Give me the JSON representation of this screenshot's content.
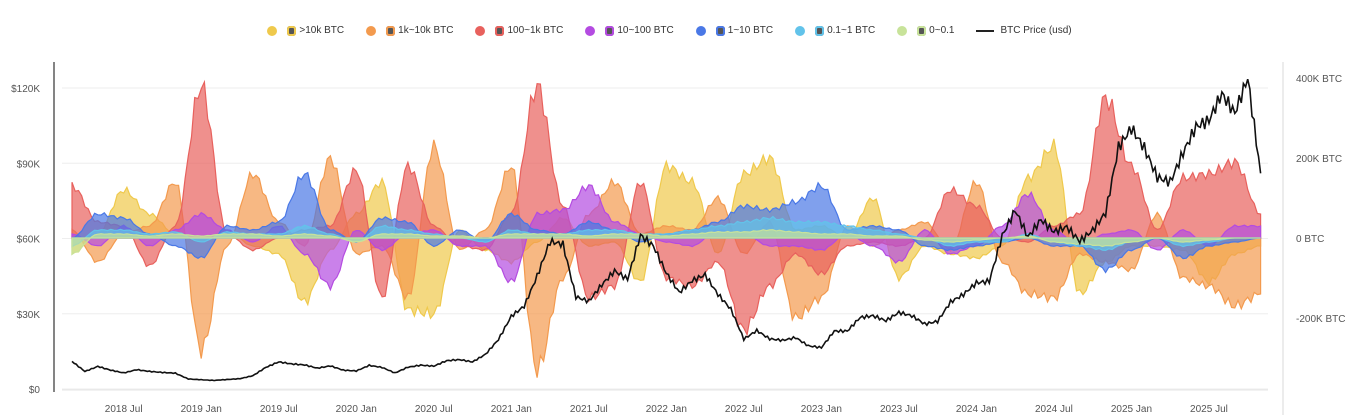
{
  "legend": [
    {
      "label": ">10k BTC",
      "color": "#efc94c",
      "icon": "whale-icon"
    },
    {
      "label": "1k~10k BTC",
      "color": "#f39a4e",
      "icon": "shark-icon"
    },
    {
      "label": "100~1k BTC",
      "color": "#e8615d",
      "icon": "dolphin-icon"
    },
    {
      "label": "10~100 BTC",
      "color": "#b44be1",
      "icon": "fish-icon"
    },
    {
      "label": "1~10 BTC",
      "color": "#4a78e6",
      "icon": "crab-icon"
    },
    {
      "label": "0.1~1 BTC",
      "color": "#62c3ea",
      "icon": "octopus-icon"
    },
    {
      "label": "0~0.1",
      "color": "#c8e39a",
      "icon": "shrimp-icon"
    },
    {
      "label": "BTC Price (usd)",
      "color": "#111111",
      "icon": "line"
    }
  ],
  "chart_data": {
    "type": "area",
    "grid": true,
    "legend_position": "top",
    "left_axis": {
      "ticks": [
        "$0",
        "$30K",
        "$60K",
        "$90K",
        "$120K"
      ],
      "values": [
        0,
        30000,
        60000,
        90000,
        120000
      ],
      "range": [
        0,
        120000
      ]
    },
    "right_axis": {
      "ticks": [
        "-200K BTC",
        "0 BTC",
        "200K BTC",
        "400K BTC"
      ],
      "values": [
        -200000,
        0,
        200000,
        400000
      ]
    },
    "x_ticks": [
      "2018 Jul",
      "2019 Jan",
      "2019 Jul",
      "2020 Jan",
      "2020 Jul",
      "2021 Jan",
      "2021 Jul",
      "2022 Jan",
      "2022 Jul",
      "2023 Jan",
      "2023 Jul",
      "2024 Jan",
      "2024 Jul",
      "2025 Jan",
      "2025 Jul"
    ],
    "x_tick_dates": [
      "2018-07",
      "2019-01",
      "2019-07",
      "2020-01",
      "2020-07",
      "2021-01",
      "2021-07",
      "2022-01",
      "2022-07",
      "2023-01",
      "2023-07",
      "2024-01",
      "2024-07",
      "2025-01",
      "2025-07"
    ],
    "cohort_x": [
      "2018-03",
      "2018-05",
      "2018-07",
      "2018-09",
      "2018-11",
      "2019-01",
      "2019-03",
      "2019-05",
      "2019-07",
      "2019-09",
      "2019-11",
      "2020-01",
      "2020-03",
      "2020-05",
      "2020-07",
      "2020-09",
      "2020-11",
      "2021-01",
      "2021-03",
      "2021-05",
      "2021-07",
      "2021-09",
      "2021-11",
      "2022-01",
      "2022-03",
      "2022-05",
      "2022-07",
      "2022-09",
      "2022-11",
      "2023-01",
      "2023-03",
      "2023-05",
      "2023-07",
      "2023-09",
      "2023-11",
      "2024-01",
      "2024-03",
      "2024-05",
      "2024-07",
      "2024-09",
      "2024-11",
      "2025-01",
      "2025-03",
      "2025-05",
      "2025-07",
      "2025-09",
      "2025-11"
    ],
    "cohort_unit": "BTC",
    "series": [
      {
        "name": ">10k BTC",
        "axis": "right",
        "values": [
          -40000,
          10000,
          120000,
          60000,
          10000,
          -10000,
          20000,
          -20000,
          -40000,
          -160000,
          -30000,
          60000,
          140000,
          -180000,
          -190000,
          20000,
          -30000,
          -60000,
          -10000,
          50000,
          -20000,
          -10000,
          -110000,
          180000,
          140000,
          -40000,
          160000,
          200000,
          20000,
          30000,
          0,
          100000,
          -100000,
          -20000,
          -40000,
          -50000,
          -20000,
          150000,
          230000,
          -140000,
          -60000,
          -20000,
          -20000,
          -30000,
          -110000,
          -40000,
          -20000
        ]
      },
      {
        "name": "1k~10k BTC",
        "axis": "right",
        "values": [
          20000,
          -60000,
          10000,
          30000,
          140000,
          -280000,
          -20000,
          160000,
          40000,
          -20000,
          200000,
          -40000,
          -20000,
          -150000,
          230000,
          -30000,
          20000,
          180000,
          -330000,
          -100000,
          60000,
          140000,
          10000,
          30000,
          20000,
          100000,
          -40000,
          40000,
          -200000,
          -150000,
          30000,
          -20000,
          20000,
          40000,
          -30000,
          140000,
          -60000,
          -140000,
          -150000,
          -40000,
          -60000,
          -80000,
          60000,
          -100000,
          -120000,
          -170000,
          -140000
        ]
      },
      {
        "name": "100~1k BTC",
        "axis": "right",
        "values": [
          130000,
          40000,
          30000,
          -70000,
          30000,
          380000,
          10000,
          -30000,
          0,
          20000,
          30000,
          170000,
          -150000,
          180000,
          30000,
          -20000,
          -30000,
          60000,
          380000,
          80000,
          -150000,
          -120000,
          140000,
          -100000,
          -120000,
          -60000,
          -230000,
          -120000,
          -40000,
          -90000,
          -20000,
          -10000,
          -20000,
          0,
          120000,
          80000,
          0,
          -10000,
          30000,
          60000,
          350000,
          180000,
          20000,
          150000,
          160000,
          190000,
          60000
        ]
      },
      {
        "name": "10~100 BTC",
        "axis": "right",
        "values": [
          10000,
          -20000,
          30000,
          -20000,
          20000,
          60000,
          20000,
          -10000,
          30000,
          -40000,
          -120000,
          20000,
          -30000,
          10000,
          20000,
          -20000,
          -20000,
          -110000,
          60000,
          70000,
          130000,
          40000,
          10000,
          -10000,
          -20000,
          20000,
          10000,
          -20000,
          -20000,
          -30000,
          10000,
          -20000,
          -60000,
          20000,
          -40000,
          -20000,
          30000,
          110000,
          20000,
          -20000,
          10000,
          20000,
          -30000,
          20000,
          -20000,
          30000,
          30000
        ]
      },
      {
        "name": "1~10 BTC",
        "axis": "right",
        "values": [
          0,
          60000,
          50000,
          10000,
          -20000,
          -50000,
          30000,
          20000,
          40000,
          160000,
          20000,
          -10000,
          50000,
          40000,
          -20000,
          20000,
          -10000,
          60000,
          20000,
          10000,
          40000,
          20000,
          -10000,
          10000,
          20000,
          40000,
          80000,
          70000,
          90000,
          130000,
          20000,
          30000,
          20000,
          -20000,
          -30000,
          -20000,
          -10000,
          0,
          -20000,
          -20000,
          -80000,
          -30000,
          0,
          -50000,
          -20000,
          -10000,
          0
        ]
      },
      {
        "name": "0.1~1 BTC",
        "axis": "right",
        "values": [
          -20000,
          20000,
          20000,
          10000,
          15000,
          -10000,
          15000,
          10000,
          10000,
          30000,
          10000,
          -10000,
          30000,
          20000,
          10000,
          0,
          -10000,
          20000,
          10000,
          10000,
          20000,
          20000,
          10000,
          10000,
          20000,
          30000,
          40000,
          50000,
          40000,
          40000,
          30000,
          20000,
          10000,
          0,
          -20000,
          -10000,
          -10000,
          10000,
          -10000,
          -20000,
          -30000,
          -10000,
          0,
          -20000,
          -10000,
          0,
          0
        ]
      },
      {
        "name": "0~0.1",
        "axis": "right",
        "values": [
          -40000,
          10000,
          10000,
          5000,
          10000,
          5000,
          10000,
          10000,
          5000,
          10000,
          5000,
          -10000,
          10000,
          10000,
          5000,
          5000,
          0,
          10000,
          10000,
          10000,
          5000,
          10000,
          10000,
          5000,
          10000,
          15000,
          15000,
          20000,
          15000,
          10000,
          10000,
          5000,
          5000,
          -5000,
          -10000,
          -5000,
          0,
          5000,
          -10000,
          -15000,
          -20000,
          -10000,
          0,
          -10000,
          -5000,
          0,
          0
        ]
      }
    ],
    "price": {
      "name": "BTC Price (usd)",
      "axis": "left",
      "x_start": "2018-03",
      "x_step": "1 month",
      "values": [
        11000,
        7000,
        9000,
        7500,
        6400,
        7700,
        7000,
        6600,
        6300,
        4000,
        3700,
        3400,
        3800,
        4100,
        5300,
        8600,
        10800,
        10000,
        9600,
        8300,
        9200,
        7500,
        7200,
        9400,
        8600,
        6400,
        8700,
        9500,
        9100,
        11300,
        11700,
        10800,
        13800,
        19700,
        29000,
        33000,
        45000,
        58800,
        57700,
        36700,
        35000,
        41500,
        47100,
        43800,
        61300,
        57000,
        46200,
        38500,
        43200,
        45500,
        37700,
        31800,
        19900,
        23300,
        20000,
        19400,
        20500,
        17200,
        16500,
        23100,
        23100,
        28500,
        29200,
        27200,
        30500,
        29200,
        25900,
        27000,
        34700,
        37700,
        42300,
        43000,
        61100,
        71300,
        60600,
        67500,
        62700,
        64600,
        58900,
        63300,
        70200,
        96400,
        104000,
        96000,
        84400,
        82500,
        94200,
        104600,
        107100,
        117700,
        110000,
        124000,
        86000
      ]
    }
  }
}
